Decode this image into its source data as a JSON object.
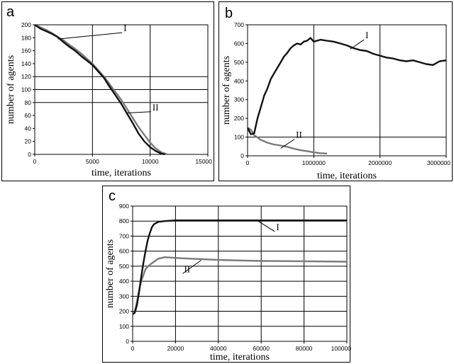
{
  "chart_data": [
    {
      "panel_letter": "a",
      "type": "line",
      "xlabel": "time, iterations",
      "ylabel": "number of agents",
      "xlim": [
        0,
        15000
      ],
      "ylim": [
        0,
        200
      ],
      "x_ticks": [
        0,
        5000,
        10000,
        15000
      ],
      "y_ticks": [
        0,
        20,
        40,
        60,
        80,
        100,
        120,
        140,
        160,
        180,
        200
      ],
      "vertical_grid": [
        5000,
        10000
      ],
      "horizontal_grid": [
        80,
        100,
        120
      ],
      "series": [
        {
          "name": "I",
          "color": "#111111",
          "points": [
            [
              0,
              200
            ],
            [
              500,
              194
            ],
            [
              1000,
              190
            ],
            [
              1500,
              186
            ],
            [
              2000,
              181
            ],
            [
              2500,
              173
            ],
            [
              3000,
              166
            ],
            [
              3500,
              160
            ],
            [
              4000,
              152
            ],
            [
              4500,
              145
            ],
            [
              5000,
              138
            ],
            [
              5500,
              128
            ],
            [
              6000,
              118
            ],
            [
              6500,
              104
            ],
            [
              7000,
              91
            ],
            [
              7500,
              78
            ],
            [
              8000,
              63
            ],
            [
              8500,
              48
            ],
            [
              9000,
              32
            ],
            [
              9500,
              20
            ],
            [
              10000,
              11
            ],
            [
              10500,
              5
            ],
            [
              11000,
              1
            ],
            [
              11300,
              0
            ]
          ]
        },
        {
          "name": "II",
          "color": "#7a7a7a",
          "points": [
            [
              0,
              200
            ],
            [
              500,
              196
            ],
            [
              1000,
              192
            ],
            [
              1500,
              187
            ],
            [
              2000,
              181
            ],
            [
              2500,
              176
            ],
            [
              3000,
              169
            ],
            [
              3500,
              163
            ],
            [
              4000,
              156
            ],
            [
              4500,
              148
            ],
            [
              5000,
              140
            ],
            [
              5500,
              130
            ],
            [
              6000,
              120
            ],
            [
              6500,
              108
            ],
            [
              7000,
              96
            ],
            [
              7500,
              84
            ],
            [
              8000,
              70
            ],
            [
              8500,
              56
            ],
            [
              9000,
              42
            ],
            [
              9500,
              30
            ],
            [
              10000,
              18
            ],
            [
              10500,
              9
            ],
            [
              11000,
              3
            ],
            [
              11500,
              0
            ]
          ]
        }
      ],
      "annotations": [
        {
          "text": "I",
          "x": 2000,
          "y": 178,
          "label_x": 7700,
          "label_y": 190
        },
        {
          "text": "II",
          "x": 8000,
          "y": 64,
          "label_x": 10200,
          "label_y": 68
        }
      ]
    },
    {
      "panel_letter": "b",
      "type": "line",
      "xlabel": "time, iterations",
      "ylabel": "number of agents",
      "xlim": [
        0,
        3000000
      ],
      "ylim": [
        0,
        700
      ],
      "x_ticks": [
        0,
        1000000,
        2000000,
        3000000
      ],
      "y_ticks": [
        0,
        100,
        200,
        300,
        400,
        500,
        600,
        700
      ],
      "vertical_grid": [
        1000000,
        2000000
      ],
      "horizontal_grid": [
        100
      ],
      "series": [
        {
          "name": "I",
          "color": "#111111",
          "points": [
            [
              0,
              150
            ],
            [
              50000,
              115
            ],
            [
              100000,
              120
            ],
            [
              150000,
              200
            ],
            [
              200000,
              260
            ],
            [
              250000,
              320
            ],
            [
              300000,
              360
            ],
            [
              350000,
              410
            ],
            [
              400000,
              440
            ],
            [
              450000,
              470
            ],
            [
              500000,
              500
            ],
            [
              550000,
              530
            ],
            [
              600000,
              550
            ],
            [
              650000,
              575
            ],
            [
              700000,
              590
            ],
            [
              750000,
              600
            ],
            [
              800000,
              595
            ],
            [
              850000,
              610
            ],
            [
              900000,
              615
            ],
            [
              950000,
              630
            ],
            [
              1000000,
              610
            ],
            [
              1100000,
              620
            ],
            [
              1200000,
              615
            ],
            [
              1300000,
              610
            ],
            [
              1400000,
              600
            ],
            [
              1500000,
              590
            ],
            [
              1600000,
              575
            ],
            [
              1700000,
              565
            ],
            [
              1800000,
              560
            ],
            [
              1900000,
              545
            ],
            [
              2000000,
              535
            ],
            [
              2100000,
              525
            ],
            [
              2200000,
              520
            ],
            [
              2300000,
              510
            ],
            [
              2400000,
              505
            ],
            [
              2500000,
              510
            ],
            [
              2600000,
              500
            ],
            [
              2700000,
              490
            ],
            [
              2800000,
              485
            ],
            [
              2900000,
              505
            ],
            [
              3000000,
              510
            ]
          ]
        },
        {
          "name": "II",
          "color": "#7a7a7a",
          "points": [
            [
              0,
              150
            ],
            [
              50000,
              140
            ],
            [
              100000,
              110
            ],
            [
              200000,
              85
            ],
            [
              300000,
              70
            ],
            [
              400000,
              60
            ],
            [
              500000,
              55
            ],
            [
              600000,
              48
            ],
            [
              700000,
              38
            ],
            [
              800000,
              30
            ],
            [
              900000,
              25
            ],
            [
              1000000,
              18
            ],
            [
              1100000,
              14
            ],
            [
              1200000,
              12
            ]
          ]
        }
      ],
      "annotations": [
        {
          "text": "I",
          "x": 1550000,
          "y": 570,
          "label_x": 1780000,
          "label_y": 628
        },
        {
          "text": "II",
          "x": 500000,
          "y": 40,
          "label_x": 730000,
          "label_y": 96
        }
      ]
    },
    {
      "panel_letter": "c",
      "type": "line",
      "xlabel": "time, iterations",
      "ylabel": "number of agents",
      "xlim": [
        0,
        100000
      ],
      "ylim": [
        0,
        900
      ],
      "x_ticks": [
        0,
        20000,
        40000,
        60000,
        80000,
        100000
      ],
      "y_ticks": [
        0,
        100,
        200,
        300,
        400,
        500,
        600,
        700,
        800,
        900
      ],
      "vertical_grid": [
        20000,
        40000,
        60000,
        80000
      ],
      "horizontal_grid": [
        100,
        200,
        300,
        400,
        500,
        600,
        700,
        800
      ],
      "series": [
        {
          "name": "I",
          "color": "#111111",
          "points": [
            [
              0,
              180
            ],
            [
              1000,
              190
            ],
            [
              2000,
              240
            ],
            [
              3000,
              330
            ],
            [
              4000,
              430
            ],
            [
              5000,
              520
            ],
            [
              6000,
              600
            ],
            [
              7000,
              670
            ],
            [
              8000,
              720
            ],
            [
              9000,
              760
            ],
            [
              10000,
              780
            ],
            [
              12000,
              795
            ],
            [
              15000,
              800
            ],
            [
              20000,
              805
            ],
            [
              30000,
              805
            ],
            [
              50000,
              805
            ],
            [
              70000,
              805
            ],
            [
              100000,
              805
            ]
          ]
        },
        {
          "name": "II",
          "color": "#7a7a7a",
          "points": [
            [
              0,
              180
            ],
            [
              1000,
              200
            ],
            [
              2000,
              260
            ],
            [
              3000,
              340
            ],
            [
              4000,
              400
            ],
            [
              5000,
              440
            ],
            [
              6000,
              480
            ],
            [
              8000,
              510
            ],
            [
              10000,
              530
            ],
            [
              12000,
              550
            ],
            [
              15000,
              560
            ],
            [
              20000,
              555
            ],
            [
              30000,
              548
            ],
            [
              40000,
              542
            ],
            [
              50000,
              538
            ],
            [
              60000,
              535
            ],
            [
              80000,
              533
            ],
            [
              100000,
              530
            ]
          ]
        }
      ],
      "annotations": [
        {
          "text": "I",
          "x": 58000,
          "y": 805,
          "label_x": 67000,
          "label_y": 740
        },
        {
          "text": "II",
          "x": 32000,
          "y": 540,
          "label_x": 24000,
          "label_y": 460
        }
      ]
    }
  ]
}
